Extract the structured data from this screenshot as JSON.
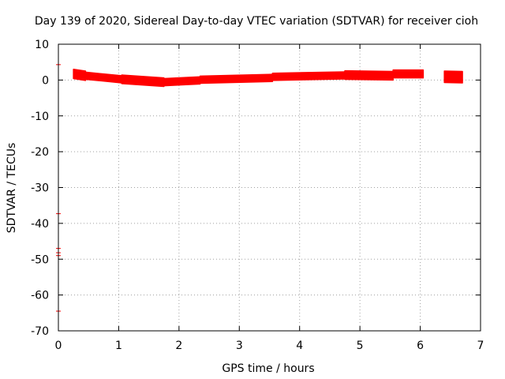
{
  "chart_data": {
    "type": "scatter",
    "title": "Day 139 of 2020, Sidereal Day-to-day VTEC variation (SDTVAR) for receiver cioh",
    "xlabel": "GPS time / hours",
    "ylabel": "SDTVAR / TECUs",
    "xlim": [
      0,
      7
    ],
    "ylim": [
      -70,
      10
    ],
    "xticks": [
      "0",
      "1",
      "2",
      "3",
      "4",
      "5",
      "6",
      "7"
    ],
    "yticks": [
      "10",
      "0",
      "-10",
      "-20",
      "-30",
      "-40",
      "-50",
      "-60",
      "-70"
    ],
    "grid": true,
    "color": "#ff0000",
    "outlier_points": [
      {
        "x": 0.0,
        "y": 4.3
      },
      {
        "x": 0.0,
        "y": -37.3
      },
      {
        "x": 0.0,
        "y": -47.0
      },
      {
        "x": 0.0,
        "y": -48.2
      },
      {
        "x": 0.0,
        "y": -49.0
      },
      {
        "x": 0.0,
        "y": -64.5
      }
    ],
    "band_segments": [
      {
        "x": [
          0.25,
          0.45
        ],
        "y": [
          1.7,
          1.2
        ],
        "thickness": 2.6
      },
      {
        "x": [
          0.45,
          1.05
        ],
        "y": [
          1.2,
          0.2
        ],
        "thickness": 2.0
      },
      {
        "x": [
          1.05,
          1.75
        ],
        "y": [
          0.2,
          -0.6
        ],
        "thickness": 2.4
      },
      {
        "x": [
          1.75,
          2.35
        ],
        "y": [
          -0.6,
          -0.1
        ],
        "thickness": 2.0
      },
      {
        "x": [
          2.35,
          3.55
        ],
        "y": [
          0.1,
          0.6
        ],
        "thickness": 2.0
      },
      {
        "x": [
          3.55,
          4.75
        ],
        "y": [
          0.9,
          1.3
        ],
        "thickness": 2.0
      },
      {
        "x": [
          4.75,
          5.55
        ],
        "y": [
          1.4,
          1.2
        ],
        "thickness": 2.4
      },
      {
        "x": [
          5.55,
          6.05
        ],
        "y": [
          1.7,
          1.7
        ],
        "thickness": 2.2
      },
      {
        "x": [
          6.4,
          6.7
        ],
        "y": [
          0.9,
          0.8
        ],
        "thickness": 3.2
      }
    ]
  }
}
